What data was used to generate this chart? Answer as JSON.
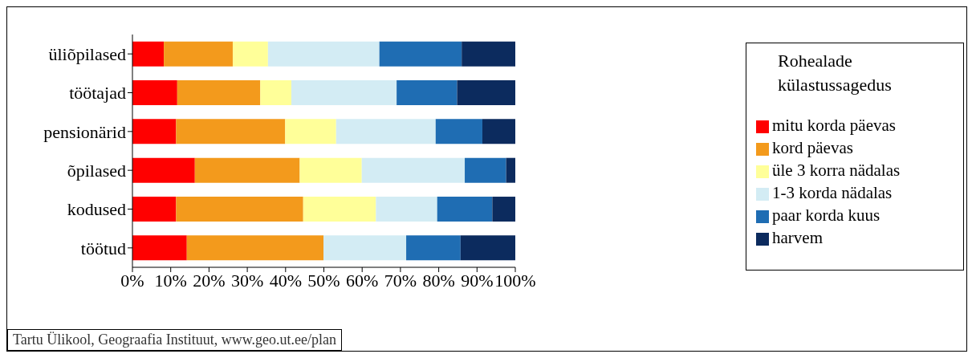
{
  "chart_data": {
    "type": "bar",
    "orientation": "horizontal",
    "stacked": true,
    "categories": [
      "üliõpilased",
      "töötajad",
      "pensionärid",
      "õpilased",
      "kodused",
      "töötud"
    ],
    "series": [
      {
        "name": "mitu korda päevas",
        "color": "#ff0000",
        "values": [
          8.2,
          11.7,
          11.4,
          16.3,
          11.4,
          14.2
        ]
      },
      {
        "name": "kord päevas",
        "color": "#f39a1c",
        "values": [
          18.0,
          21.7,
          28.5,
          27.4,
          33.2,
          35.7
        ]
      },
      {
        "name": "üle 3 korra nädalas",
        "color": "#ffff99",
        "values": [
          9.2,
          8.1,
          13.3,
          16.2,
          19.0,
          0
        ]
      },
      {
        "name": "1-3 korda nädalas",
        "color": "#d3ecf4",
        "values": [
          29.1,
          27.5,
          26.0,
          26.9,
          16.0,
          21.6
        ]
      },
      {
        "name": "paar korda kuus",
        "color": "#1f6db3",
        "values": [
          21.5,
          15.8,
          12.2,
          10.8,
          14.4,
          14.2
        ]
      },
      {
        "name": "harvem",
        "color": "#0c2b5e",
        "values": [
          14.0,
          15.2,
          8.6,
          2.4,
          6.0,
          14.3
        ]
      }
    ],
    "xlim": [
      0,
      100
    ],
    "xticks": [
      {
        "value": 0,
        "label": "0%"
      },
      {
        "value": 10,
        "label": "10%"
      },
      {
        "value": 20,
        "label": "20%"
      },
      {
        "value": 30,
        "label": "30%"
      },
      {
        "value": 40,
        "label": "40%"
      },
      {
        "value": 50,
        "label": "50%"
      },
      {
        "value": 60,
        "label": "60%"
      },
      {
        "value": 70,
        "label": "70%"
      },
      {
        "value": 80,
        "label": "80%"
      },
      {
        "value": 90,
        "label": "90%"
      },
      {
        "value": 100,
        "label": "100%"
      }
    ],
    "legend": "right",
    "legend_title": "Rohealade külastussagedus",
    "grid": false,
    "annotations": [
      "Tartu Ülikool, Geograafia Instituut, www.geo.ut.ee/plan"
    ]
  }
}
